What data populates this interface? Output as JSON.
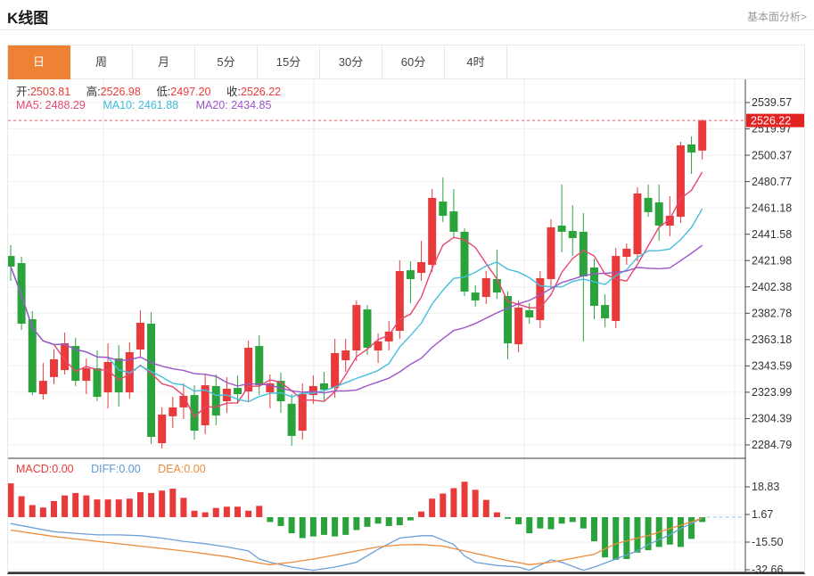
{
  "header": {
    "title": "K线图",
    "link": "基本面分析>"
  },
  "tabs": [
    {
      "label": "日",
      "active": true
    },
    {
      "label": "周",
      "active": false
    },
    {
      "label": "月",
      "active": false
    },
    {
      "label": "5分",
      "active": false
    },
    {
      "label": "15分",
      "active": false
    },
    {
      "label": "30分",
      "active": false
    },
    {
      "label": "60分",
      "active": false
    },
    {
      "label": "4时",
      "active": false
    }
  ],
  "quote_bar": {
    "open_label": "开:",
    "open": "2503.81",
    "high_label": "高:",
    "high": "2526.98",
    "low_label": "低:",
    "low": "2497.20",
    "close_label": "收:",
    "close": "2526.22"
  },
  "ma_bar": {
    "ma5": "MA5: 2488.29",
    "ma10": "MA10: 2461.88",
    "ma20": "MA20: 2434.85"
  },
  "macd_bar": {
    "macd": "MACD:0.00",
    "diff": "DIFF:0.00",
    "dea": "DEA:0.00"
  },
  "colors": {
    "up": "#e83a3a",
    "down": "#2ba33c",
    "ma5": "#e8466e",
    "ma10": "#45bedd",
    "ma20": "#9d55c8",
    "diff_line": "#6ba1d8",
    "dea_line": "#ef8b3a",
    "active_tab": "#ee8133",
    "price_flag_bg": "#e32222",
    "current_price_line": "#e85a6a",
    "zero_dash": "#7fd0dc",
    "grid": "#f0f0f0",
    "vgrid": "#ececec",
    "axis": "#444444",
    "label": "#333333"
  },
  "chart_data": {
    "type": "candlestick",
    "title": "K线图",
    "period_selected": "日",
    "price_axis_ticks": [
      "2539.57",
      "2519.97",
      "2500.37",
      "2480.77",
      "2461.18",
      "2441.58",
      "2421.98",
      "2402.38",
      "2382.78",
      "2363.18",
      "2343.59",
      "2323.99",
      "2304.39",
      "2284.79"
    ],
    "current_price": "2526.22",
    "candles_ohlc": [
      [
        2425.4,
        2433.4,
        2406.9,
        2417.5
      ],
      [
        2420.1,
        2424.8,
        2370.4,
        2375.0
      ],
      [
        2378.3,
        2384.3,
        2321.9,
        2323.9
      ],
      [
        2322.6,
        2345.8,
        2318.6,
        2332.5
      ],
      [
        2335.3,
        2356.0,
        2330.0,
        2348.5
      ],
      [
        2340.5,
        2368.4,
        2337.2,
        2360.4
      ],
      [
        2358.4,
        2364.4,
        2328.6,
        2332.5
      ],
      [
        2332.5,
        2349.1,
        2322.6,
        2341.8
      ],
      [
        2341.8,
        2355.1,
        2317.3,
        2320.6
      ],
      [
        2323.9,
        2360.4,
        2312.0,
        2346.5
      ],
      [
        2349.1,
        2359.1,
        2313.4,
        2323.9
      ],
      [
        2323.9,
        2361.1,
        2319.3,
        2353.8
      ],
      [
        2355.8,
        2385.0,
        2350.4,
        2375.7
      ],
      [
        2375.0,
        2383.6,
        2285.5,
        2290.8
      ],
      [
        2286.1,
        2312.7,
        2282.1,
        2307.4
      ],
      [
        2306.1,
        2320.6,
        2297.4,
        2312.7
      ],
      [
        2312.7,
        2330.6,
        2304.1,
        2321.3
      ],
      [
        2321.9,
        2329.2,
        2288.8,
        2295.4
      ],
      [
        2299.4,
        2337.2,
        2292.8,
        2329.2
      ],
      [
        2328.6,
        2337.2,
        2299.4,
        2306.7
      ],
      [
        2317.3,
        2335.2,
        2308.7,
        2326.6
      ],
      [
        2327.2,
        2336.5,
        2315.4,
        2322.6
      ],
      [
        2324.6,
        2362.4,
        2317.3,
        2357.1
      ],
      [
        2358.4,
        2366.4,
        2321.9,
        2329.2
      ],
      [
        2323.9,
        2337.2,
        2312.0,
        2330.6
      ],
      [
        2332.5,
        2338.5,
        2308.7,
        2317.3
      ],
      [
        2315.4,
        2322.6,
        2284.2,
        2291.5
      ],
      [
        2295.4,
        2330.6,
        2288.8,
        2322.6
      ],
      [
        2321.9,
        2336.5,
        2315.4,
        2328.6
      ],
      [
        2330.6,
        2339.2,
        2318.0,
        2325.9
      ],
      [
        2327.2,
        2363.7,
        2319.9,
        2353.1
      ],
      [
        2347.8,
        2363.7,
        2339.2,
        2355.1
      ],
      [
        2355.1,
        2392.3,
        2347.1,
        2388.9
      ],
      [
        2385.6,
        2388.9,
        2351.8,
        2357.1
      ],
      [
        2355.1,
        2367.7,
        2345.8,
        2361.8
      ],
      [
        2361.8,
        2377.0,
        2355.1,
        2369.1
      ],
      [
        2369.7,
        2422.1,
        2363.7,
        2414.2
      ],
      [
        2414.8,
        2421.4,
        2390.3,
        2408.2
      ],
      [
        2412.8,
        2436.7,
        2406.9,
        2420.8
      ],
      [
        2418.8,
        2475.2,
        2413.5,
        2468.6
      ],
      [
        2465.9,
        2483.8,
        2450.7,
        2455.3
      ],
      [
        2458.6,
        2475.2,
        2438.7,
        2443.4
      ],
      [
        2443.4,
        2446.0,
        2395.6,
        2398.9
      ],
      [
        2398.2,
        2403.6,
        2387.6,
        2392.3
      ],
      [
        2394.9,
        2414.2,
        2389.6,
        2408.9
      ],
      [
        2408.2,
        2430.1,
        2393.6,
        2398.2
      ],
      [
        2395.6,
        2398.9,
        2348.5,
        2360.4
      ],
      [
        2359.7,
        2392.3,
        2353.8,
        2387.0
      ],
      [
        2385.0,
        2390.3,
        2375.0,
        2379.7
      ],
      [
        2377.7,
        2414.2,
        2371.7,
        2408.9
      ],
      [
        2408.2,
        2452.7,
        2401.6,
        2446.7
      ],
      [
        2448.0,
        2478.5,
        2428.1,
        2443.4
      ],
      [
        2444.0,
        2463.3,
        2425.4,
        2438.7
      ],
      [
        2443.4,
        2457.3,
        2361.8,
        2410.2
      ],
      [
        2416.8,
        2423.4,
        2378.3,
        2388.3
      ],
      [
        2388.9,
        2396.9,
        2372.4,
        2379.0
      ],
      [
        2377.0,
        2431.4,
        2371.7,
        2425.4
      ],
      [
        2424.8,
        2434.7,
        2418.8,
        2430.8
      ],
      [
        2426.8,
        2476.5,
        2421.4,
        2471.9
      ],
      [
        2468.6,
        2478.5,
        2454.6,
        2458.0
      ],
      [
        2465.3,
        2478.5,
        2436.7,
        2448.0
      ],
      [
        2448.0,
        2469.9,
        2440.1,
        2455.3
      ],
      [
        2454.6,
        2510.4,
        2450.0,
        2507.7
      ],
      [
        2508.4,
        2514.4,
        2486.5,
        2502.4
      ],
      [
        2503.81,
        2526.98,
        2497.2,
        2526.22
      ]
    ],
    "ma_lines": [
      {
        "name": "MA5",
        "period": 5,
        "value": "2488.29",
        "color": "#e8466e"
      },
      {
        "name": "MA10",
        "period": 10,
        "value": "2461.88",
        "color": "#45bedd"
      },
      {
        "name": "MA20",
        "period": 20,
        "value": "2434.85",
        "color": "#9d55c8"
      }
    ],
    "macd": {
      "axis_ticks": [
        "18.83",
        "1.67",
        "-15.50",
        "-32.66"
      ],
      "macd_value": "0.00",
      "diff_value": "0.00",
      "dea_value": "0.00",
      "histogram": [
        21,
        13,
        7.5,
        6,
        10,
        13.5,
        15,
        13.5,
        11,
        11,
        11,
        11.5,
        15.5,
        15,
        16.5,
        17.7,
        12,
        4,
        3,
        5.7,
        6.5,
        6.5,
        4,
        7,
        -3,
        -5.5,
        -10,
        -13,
        -12,
        -11,
        -12,
        -11,
        -8,
        -6,
        -4,
        -5.5,
        -5,
        -2,
        3.5,
        11.5,
        14.7,
        18,
        22,
        17,
        10.7,
        3,
        -1,
        -4.4,
        -10,
        -7,
        -7.5,
        -4,
        -3,
        -7,
        -15,
        -25,
        -26.5,
        -26,
        -22,
        -20.5,
        -18.5,
        -17,
        -18.5,
        -13.5,
        -3
      ],
      "diff_points": [
        [
          0,
          -4
        ],
        [
          2,
          -6.5
        ],
        [
          4,
          -9
        ],
        [
          6,
          -10
        ],
        [
          8,
          -11
        ],
        [
          10,
          -11
        ],
        [
          12,
          -11.5
        ],
        [
          14,
          -13
        ],
        [
          16,
          -15
        ],
        [
          18,
          -16.5
        ],
        [
          20,
          -18.5
        ],
        [
          22,
          -21
        ],
        [
          23,
          -26
        ],
        [
          24,
          -28
        ],
        [
          26,
          -31
        ],
        [
          28,
          -33
        ],
        [
          30,
          -31
        ],
        [
          32,
          -28
        ],
        [
          34,
          -20
        ],
        [
          36,
          -13
        ],
        [
          38,
          -11.5
        ],
        [
          39,
          -11.5
        ],
        [
          41,
          -17
        ],
        [
          42,
          -24
        ],
        [
          43,
          -28
        ],
        [
          45,
          -30
        ],
        [
          47,
          -31
        ],
        [
          48,
          -33
        ],
        [
          50,
          -26.5
        ],
        [
          51,
          -28
        ],
        [
          53,
          -33
        ],
        [
          54,
          -31
        ],
        [
          56,
          -26
        ],
        [
          58,
          -21
        ],
        [
          59,
          -17
        ],
        [
          61,
          -11
        ],
        [
          62,
          -7
        ],
        [
          63,
          -4
        ],
        [
          64,
          -0.5
        ]
      ],
      "dea_points": [
        [
          0,
          -8
        ],
        [
          4,
          -12
        ],
        [
          8,
          -15
        ],
        [
          12,
          -18
        ],
        [
          16,
          -21
        ],
        [
          20,
          -24.5
        ],
        [
          23,
          -28.5
        ],
        [
          24,
          -29.5
        ],
        [
          26,
          -28
        ],
        [
          28,
          -26
        ],
        [
          30,
          -23.5
        ],
        [
          32,
          -21
        ],
        [
          34,
          -18.5
        ],
        [
          36,
          -17.2
        ],
        [
          38,
          -17
        ],
        [
          40,
          -18
        ],
        [
          42,
          -21
        ],
        [
          44,
          -24
        ],
        [
          46,
          -27
        ],
        [
          48,
          -29.5
        ],
        [
          50,
          -28
        ],
        [
          52,
          -25.5
        ],
        [
          54,
          -23
        ],
        [
          56,
          -16.5
        ],
        [
          58,
          -13
        ],
        [
          59,
          -11.5
        ],
        [
          61,
          -7
        ],
        [
          63,
          -3
        ],
        [
          64,
          -0.5
        ]
      ]
    }
  }
}
